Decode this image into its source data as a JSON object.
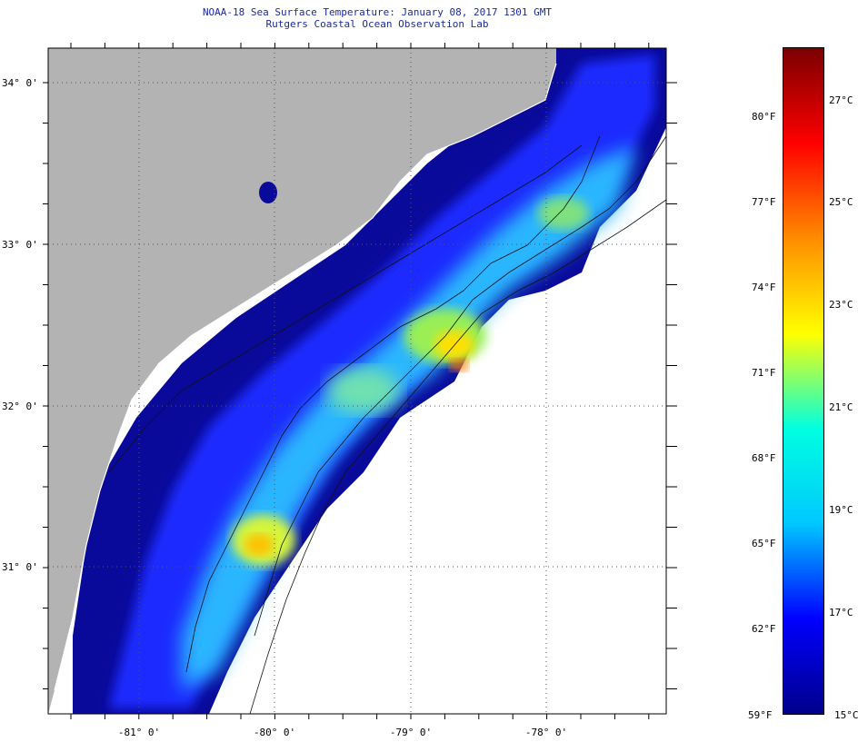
{
  "header": {
    "title": "NOAA-18 Sea Surface Temperature:  January 08, 2017 1301 GMT",
    "subtitle": "Rutgers Coastal Ocean Observation Lab"
  },
  "map": {
    "lat_labels": [
      "34° 0'",
      "33° 0'",
      "32° 0'",
      "31° 0'"
    ],
    "lon_labels": [
      "-81° 0'",
      "-80° 0'",
      "-79° 0'",
      "-78° 0'"
    ],
    "land_color": "#b3b3b3",
    "no_data_color": "#ffffff"
  },
  "colorbar": {
    "fahrenheit_labels": [
      "80°F",
      "77°F",
      "74°F",
      "71°F",
      "68°F",
      "65°F",
      "62°F",
      "59°F"
    ],
    "celsius_labels": [
      "27°C",
      "25°C",
      "23°C",
      "21°C",
      "19°C",
      "17°C",
      "15°C"
    ],
    "colors": [
      "#00008b",
      "#0000ff",
      "#00c8ff",
      "#00ffe0",
      "#ffff00",
      "#ff8c00",
      "#ff0000",
      "#7a0000"
    ]
  }
}
